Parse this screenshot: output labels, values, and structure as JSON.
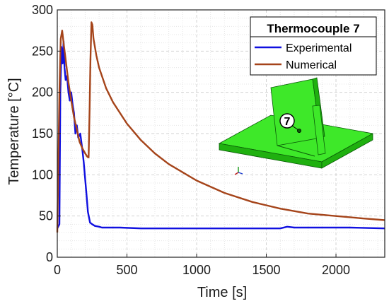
{
  "chart_data": {
    "type": "line",
    "xlabel": "Time [s]",
    "ylabel": "Temperature [°C]",
    "xlim": [
      0,
      2350
    ],
    "ylim": [
      0,
      300
    ],
    "xticks": [
      0,
      500,
      1000,
      1500,
      2000
    ],
    "yticks": [
      0,
      50,
      100,
      150,
      200,
      250,
      300
    ],
    "grid": "major-dashed, minor-dotted",
    "legend": {
      "title": "Thermocouple 7",
      "placement": "top-right"
    },
    "series": [
      {
        "name": "Experimental",
        "color": "#1010e0",
        "x": [
          0,
          15,
          22,
          30,
          38,
          45,
          52,
          60,
          70,
          80,
          90,
          100,
          110,
          120,
          130,
          140,
          150,
          165,
          180,
          190,
          200,
          210,
          220,
          235,
          250,
          270,
          300,
          320,
          340,
          380,
          450,
          600,
          800,
          1000,
          1200,
          1400,
          1600,
          1650,
          1700,
          1900,
          2100,
          2350
        ],
        "y": [
          35,
          40,
          200,
          255,
          235,
          262,
          230,
          215,
          220,
          200,
          190,
          200,
          185,
          175,
          150,
          160,
          145,
          150,
          130,
          115,
          95,
          75,
          55,
          42,
          40,
          38,
          37,
          36,
          36,
          36,
          36,
          35,
          35,
          35,
          35,
          35,
          35,
          37,
          36,
          36,
          36,
          35
        ]
      },
      {
        "name": "Numerical",
        "color": "#a5441a",
        "x": [
          0,
          15,
          25,
          35,
          45,
          60,
          80,
          100,
          120,
          140,
          160,
          180,
          200,
          215,
          225,
          232,
          238,
          245,
          252,
          260,
          280,
          300,
          350,
          400,
          500,
          600,
          700,
          800,
          1000,
          1200,
          1400,
          1600,
          1800,
          2000,
          2200,
          2350
        ],
        "y": [
          30,
          200,
          265,
          275,
          260,
          240,
          212,
          190,
          170,
          155,
          140,
          132,
          126,
          122,
          121,
          180,
          240,
          285,
          282,
          265,
          245,
          230,
          205,
          188,
          162,
          142,
          126,
          113,
          93,
          78,
          67,
          59,
          53,
          50,
          47,
          45
        ]
      }
    ],
    "annotations": [
      {
        "text": "7",
        "kind": "inset-marker"
      }
    ],
    "inset_colors": {
      "top": "#3ee829",
      "side": "#1fb00f",
      "edge": "#0a5a08"
    }
  }
}
